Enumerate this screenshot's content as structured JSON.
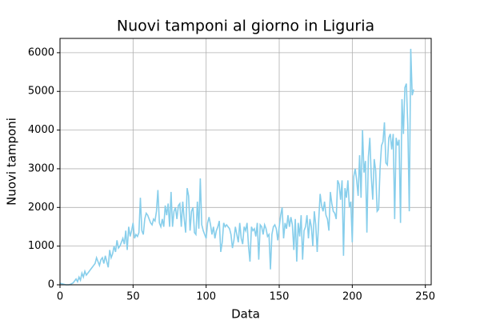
{
  "chart_data": {
    "type": "line",
    "title": "Nuovi tamponi al giorno in Liguria",
    "x_label": "Data",
    "y_label": "Nuovi tamponi",
    "color": "#87ceeb",
    "grid": true,
    "xlim": [
      0,
      254
    ],
    "xticks": [
      0,
      50,
      100,
      150,
      200,
      250
    ],
    "ylim": [
      0,
      6370
    ],
    "yticks": [
      0,
      1000,
      2000,
      3000,
      4000,
      5000,
      6000
    ],
    "values": [
      40,
      30,
      20,
      10,
      0,
      0,
      0,
      10,
      30,
      50,
      100,
      150,
      80,
      200,
      120,
      300,
      200,
      350,
      250,
      300,
      350,
      400,
      450,
      500,
      550,
      700,
      600,
      500,
      650,
      700,
      550,
      750,
      600,
      450,
      900,
      700,
      800,
      1000,
      850,
      1150,
      950,
      1000,
      1100,
      1200,
      1050,
      1400,
      900,
      1500,
      1250,
      1400,
      1600,
      1200,
      1300,
      1250,
      1350,
      2250,
      1400,
      1300,
      1700,
      1850,
      1800,
      1700,
      1600,
      1550,
      1700,
      1650,
      1900,
      2450,
      1600,
      1500,
      1700,
      1500,
      2050,
      1800,
      2100,
      1500,
      2400,
      1500,
      1900,
      2000,
      1700,
      2050,
      2100,
      1500,
      2150,
      1700,
      1350,
      2500,
      2300,
      1400,
      1900,
      2000,
      1350,
      1300,
      2150,
      1450,
      2750,
      1550,
      1400,
      1300,
      1200,
      1600,
      1750,
      1550,
      1300,
      1500,
      1200,
      1400,
      1500,
      1650,
      850,
      1100,
      1600,
      1500,
      1550,
      1500,
      1450,
      1300,
      950,
      1150,
      1500,
      1300,
      1100,
      1600,
      1200,
      1050,
      1500,
      1400,
      1600,
      1000,
      600,
      1500,
      1400,
      1450,
      1250,
      1600,
      650,
      1550,
      1500,
      1300,
      1550,
      1450,
      1250,
      1300,
      400,
      1300,
      1500,
      1550,
      1450,
      1150,
      1500,
      1800,
      2000,
      1200,
      1600,
      1450,
      1800,
      1500,
      1750,
      1550,
      900,
      1700,
      600,
      1600,
      1250,
      1800,
      650,
      1400,
      1500,
      1800,
      1200,
      1700,
      1500,
      1000,
      1900,
      1550,
      850,
      1650,
      2350,
      2050,
      1900,
      2150,
      1800,
      1700,
      1400,
      2400,
      2100,
      1900,
      1850,
      1700,
      2700,
      2600,
      2200,
      2700,
      750,
      2500,
      2250,
      2700,
      2000,
      2150,
      1100,
      2800,
      3000,
      2700,
      2300,
      3350,
      2250,
      4000,
      2900,
      3200,
      1350,
      3300,
      3800,
      2800,
      2200,
      3250,
      2950,
      1900,
      1950,
      3000,
      3600,
      3700,
      4200,
      3150,
      3100,
      3800,
      3900,
      3500,
      3900,
      1700,
      3800,
      3600,
      3750,
      1600,
      4800,
      3900,
      5100,
      5200,
      4100,
      1900,
      6100,
      4900,
      5050
    ]
  }
}
